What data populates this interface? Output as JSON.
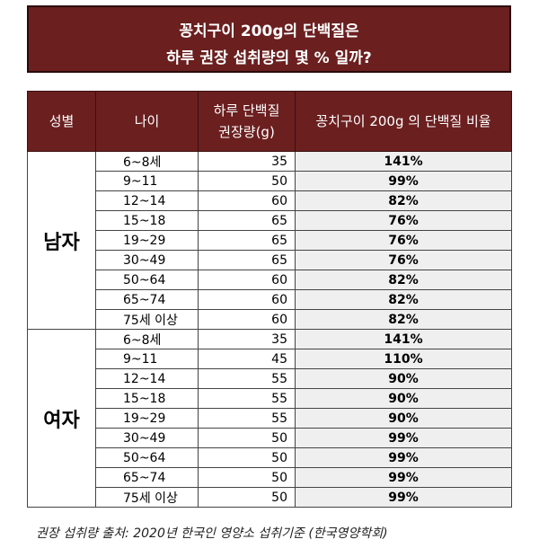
{
  "banner": {
    "line1": "꽁치구이 200g의 단백질은",
    "line2": "하루 권장 섭취량의 몇 % 일까?"
  },
  "table": {
    "headers": {
      "sex": "성별",
      "age": "나이",
      "amount_line1": "하루 단백질",
      "amount_line2": "권장량(g)",
      "percent": "꽁치구이 200g 의 단백질 비율"
    },
    "groups": [
      {
        "sex": "남자",
        "rows": [
          {
            "age": "6~8세",
            "amount": "35",
            "percent": "141%"
          },
          {
            "age": "9~11",
            "amount": "50",
            "percent": "99%"
          },
          {
            "age": "12~14",
            "amount": "60",
            "percent": "82%"
          },
          {
            "age": "15~18",
            "amount": "65",
            "percent": "76%"
          },
          {
            "age": "19~29",
            "amount": "65",
            "percent": "76%"
          },
          {
            "age": "30~49",
            "amount": "65",
            "percent": "76%"
          },
          {
            "age": "50~64",
            "amount": "60",
            "percent": "82%"
          },
          {
            "age": "65~74",
            "amount": "60",
            "percent": "82%"
          },
          {
            "age": "75세 이상",
            "amount": "60",
            "percent": "82%"
          }
        ]
      },
      {
        "sex": "여자",
        "rows": [
          {
            "age": "6~8세",
            "amount": "35",
            "percent": "141%"
          },
          {
            "age": "9~11",
            "amount": "45",
            "percent": "110%"
          },
          {
            "age": "12~14",
            "amount": "55",
            "percent": "90%"
          },
          {
            "age": "15~18",
            "amount": "55",
            "percent": "90%"
          },
          {
            "age": "19~29",
            "amount": "55",
            "percent": "90%"
          },
          {
            "age": "30~49",
            "amount": "50",
            "percent": "99%"
          },
          {
            "age": "50~64",
            "amount": "50",
            "percent": "99%"
          },
          {
            "age": "65~74",
            "amount": "50",
            "percent": "99%"
          },
          {
            "age": "75세 이상",
            "amount": "50",
            "percent": "99%"
          }
        ]
      }
    ]
  },
  "footer": "권장 섭취량 출처: 2020년 한국인 영양소 섭취기준 (한국영양학회)",
  "colors": {
    "header_bg": "#6b1f1f",
    "percent_bg": "#efefef"
  }
}
